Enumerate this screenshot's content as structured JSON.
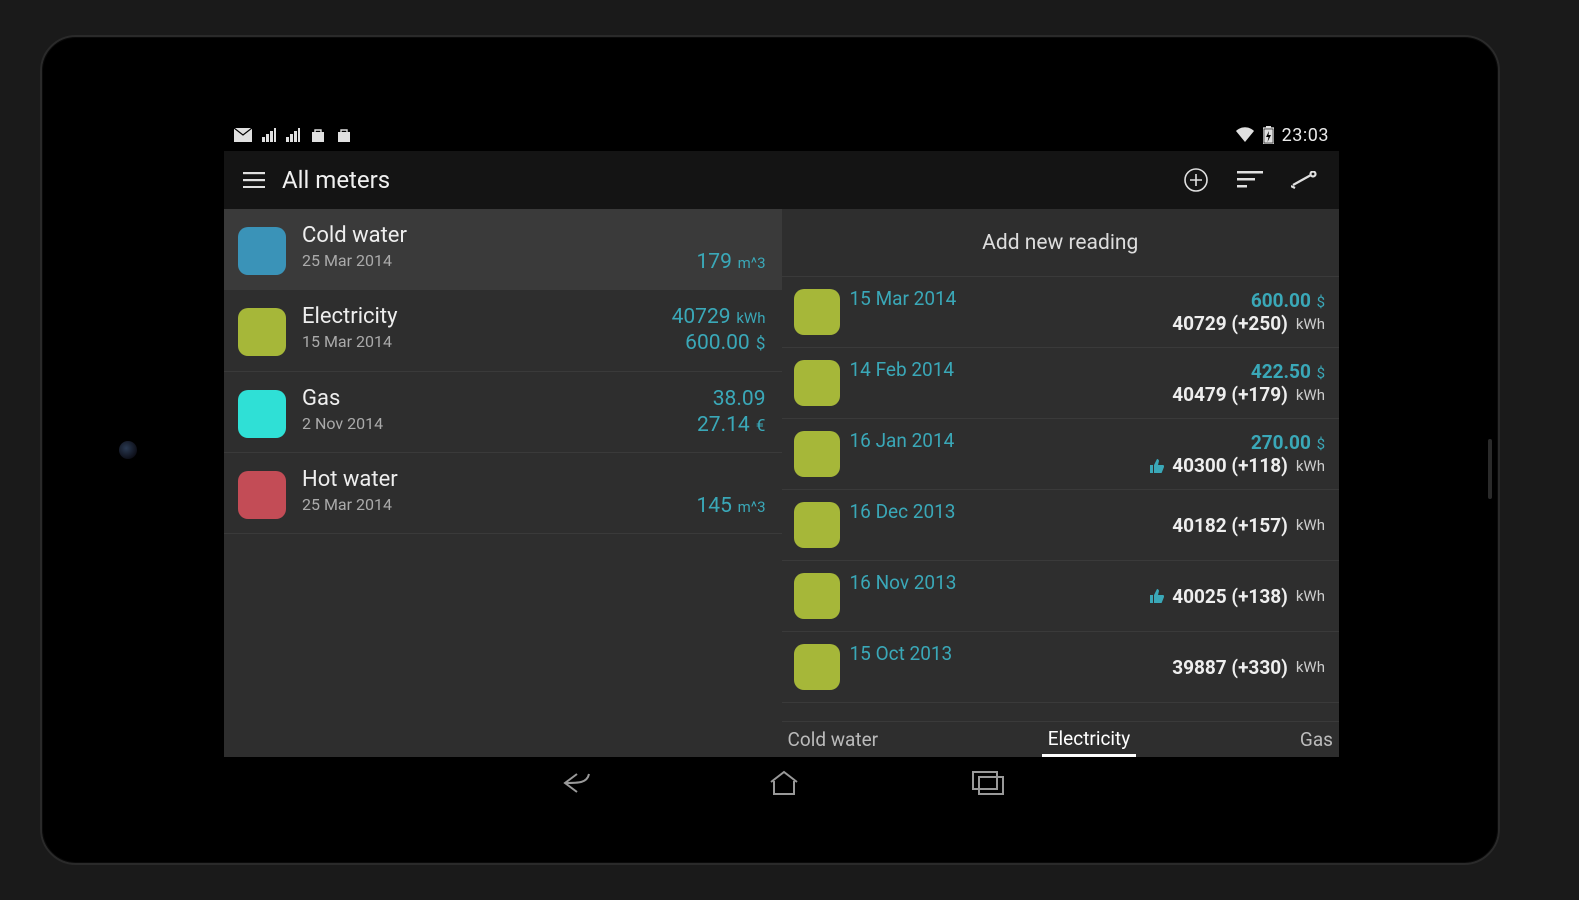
{
  "colors": {
    "accent": "#3aa8b8",
    "bg_dark": "#2e2e2e",
    "bg_selected": "#3a3a3a",
    "electricity": "#a6b739",
    "cold_water": "#3a93b8",
    "gas": "#2fe0d6",
    "hot_water": "#c34c56"
  },
  "status": {
    "time": "23:03"
  },
  "actionbar": {
    "title": "All meters"
  },
  "meters": [
    {
      "name": "Cold water",
      "date": "25 Mar 2014",
      "color": "#3a93b8",
      "lines": [
        {
          "value": "179",
          "unit": "m^3"
        }
      ],
      "selected": true
    },
    {
      "name": "Electricity",
      "date": "15 Mar 2014",
      "color": "#a6b739",
      "lines": [
        {
          "value": "40729",
          "unit": "kWh"
        },
        {
          "value": "600.00",
          "unit": "$",
          "currency": true
        }
      ],
      "selected": false
    },
    {
      "name": "Gas",
      "date": "2 Nov 2014",
      "color": "#2fe0d6",
      "lines": [
        {
          "value": "38.09",
          "unit": ""
        },
        {
          "value": "27.14",
          "unit": "€",
          "currency": true
        }
      ],
      "selected": false
    },
    {
      "name": "Hot water",
      "date": "25 Mar 2014",
      "color": "#c34c56",
      "lines": [
        {
          "value": "145",
          "unit": "m^3"
        }
      ],
      "selected": false
    }
  ],
  "right": {
    "add_label": "Add new reading",
    "reading_color": "#a6b739",
    "unit": "kWh",
    "currency": "$",
    "readings": [
      {
        "date": "15 Mar 2014",
        "cost": "600.00",
        "amount": "40729",
        "delta": "+250",
        "thumb": false
      },
      {
        "date": "14 Feb 2014",
        "cost": "422.50",
        "amount": "40479",
        "delta": "+179",
        "thumb": false
      },
      {
        "date": "16 Jan 2014",
        "cost": "270.00",
        "amount": "40300",
        "delta": "+118",
        "thumb": true
      },
      {
        "date": "16 Dec 2013",
        "cost": null,
        "amount": "40182",
        "delta": "+157",
        "thumb": false
      },
      {
        "date": "16 Nov 2013",
        "cost": null,
        "amount": "40025",
        "delta": "+138",
        "thumb": true
      },
      {
        "date": "15 Oct 2013",
        "cost": null,
        "amount": "39887",
        "delta": "+330",
        "thumb": false
      }
    ],
    "tabs": [
      {
        "label": "Cold water",
        "active": false,
        "align": "left"
      },
      {
        "label": "Electricity",
        "active": true,
        "align": "center"
      },
      {
        "label": "Gas",
        "active": false,
        "align": "right"
      }
    ]
  }
}
